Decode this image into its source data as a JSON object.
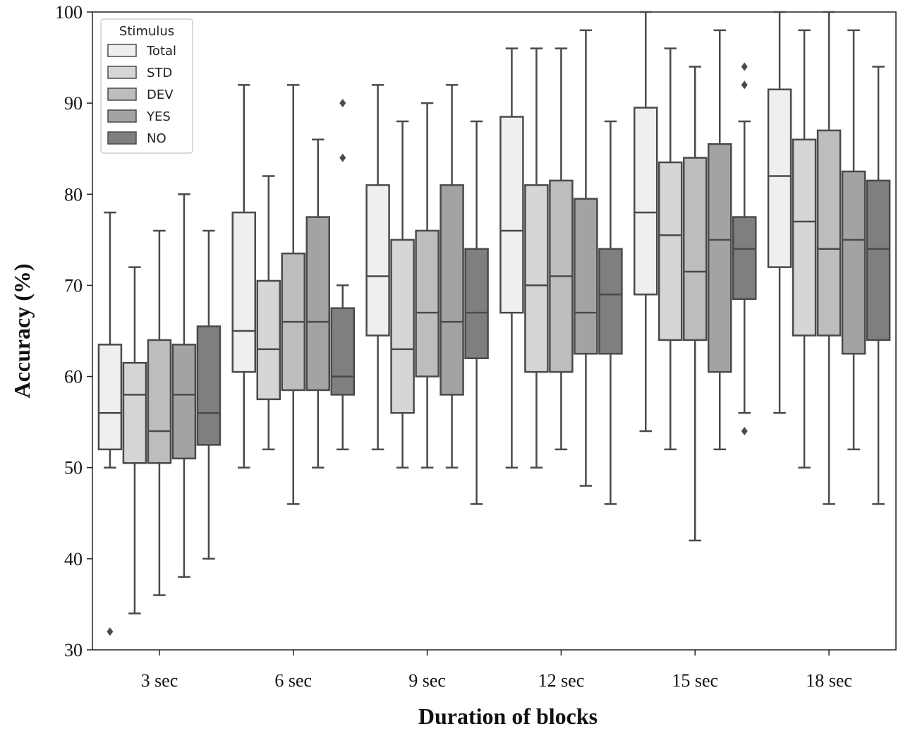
{
  "chart_data": {
    "type": "box",
    "xlabel": "Duration of blocks",
    "ylabel": "Accuracy (%)",
    "ylim": [
      30,
      100
    ],
    "yticks": [
      30,
      40,
      50,
      60,
      70,
      80,
      90,
      100
    ],
    "categories": [
      "3 sec",
      "6 sec",
      "9 sec",
      "12 sec",
      "15 sec",
      "18 sec"
    ],
    "legend": {
      "title": "Stimulus",
      "position": "top-left"
    },
    "series": [
      {
        "name": "Total",
        "color": "#efefef",
        "boxes": [
          {
            "whislo": 50,
            "q1": 52,
            "med": 56,
            "q3": 63.5,
            "whishi": 78,
            "fliers": [
              32
            ]
          },
          {
            "whislo": 50,
            "q1": 60.5,
            "med": 65,
            "q3": 78,
            "whishi": 92,
            "fliers": []
          },
          {
            "whislo": 52,
            "q1": 64.5,
            "med": 71,
            "q3": 81,
            "whishi": 92,
            "fliers": []
          },
          {
            "whislo": 50,
            "q1": 67,
            "med": 76,
            "q3": 88.5,
            "whishi": 96,
            "fliers": []
          },
          {
            "whislo": 54,
            "q1": 69,
            "med": 78,
            "q3": 89.5,
            "whishi": 100,
            "fliers": []
          },
          {
            "whislo": 56,
            "q1": 72,
            "med": 82,
            "q3": 91.5,
            "whishi": 100,
            "fliers": []
          }
        ]
      },
      {
        "name": "STD",
        "color": "#d6d6d6",
        "boxes": [
          {
            "whislo": 34,
            "q1": 50.5,
            "med": 58,
            "q3": 61.5,
            "whishi": 72,
            "fliers": []
          },
          {
            "whislo": 52,
            "q1": 57.5,
            "med": 63,
            "q3": 70.5,
            "whishi": 82,
            "fliers": []
          },
          {
            "whislo": 50,
            "q1": 56,
            "med": 63,
            "q3": 75,
            "whishi": 88,
            "fliers": []
          },
          {
            "whislo": 50,
            "q1": 60.5,
            "med": 70,
            "q3": 81,
            "whishi": 96,
            "fliers": []
          },
          {
            "whislo": 52,
            "q1": 64,
            "med": 75.5,
            "q3": 83.5,
            "whishi": 96,
            "fliers": []
          },
          {
            "whislo": 50,
            "q1": 64.5,
            "med": 77,
            "q3": 86,
            "whishi": 98,
            "fliers": []
          }
        ]
      },
      {
        "name": "DEV",
        "color": "#bdbdbd",
        "boxes": [
          {
            "whislo": 36,
            "q1": 50.5,
            "med": 54,
            "q3": 64,
            "whishi": 76,
            "fliers": []
          },
          {
            "whislo": 46,
            "q1": 58.5,
            "med": 66,
            "q3": 73.5,
            "whishi": 92,
            "fliers": []
          },
          {
            "whislo": 50,
            "q1": 60,
            "med": 67,
            "q3": 76,
            "whishi": 90,
            "fliers": []
          },
          {
            "whislo": 52,
            "q1": 60.5,
            "med": 71,
            "q3": 81.5,
            "whishi": 96,
            "fliers": []
          },
          {
            "whislo": 42,
            "q1": 64,
            "med": 71.5,
            "q3": 84,
            "whishi": 94,
            "fliers": []
          },
          {
            "whislo": 46,
            "q1": 64.5,
            "med": 74,
            "q3": 87,
            "whishi": 100,
            "fliers": []
          }
        ]
      },
      {
        "name": "YES",
        "color": "#a3a3a3",
        "boxes": [
          {
            "whislo": 38,
            "q1": 51,
            "med": 58,
            "q3": 63.5,
            "whishi": 80,
            "fliers": []
          },
          {
            "whislo": 50,
            "q1": 58.5,
            "med": 66,
            "q3": 77.5,
            "whishi": 86,
            "fliers": []
          },
          {
            "whislo": 50,
            "q1": 58,
            "med": 66,
            "q3": 81,
            "whishi": 92,
            "fliers": []
          },
          {
            "whislo": 48,
            "q1": 62.5,
            "med": 67,
            "q3": 79.5,
            "whishi": 98,
            "fliers": []
          },
          {
            "whislo": 52,
            "q1": 60.5,
            "med": 75,
            "q3": 85.5,
            "whishi": 98,
            "fliers": []
          },
          {
            "whislo": 52,
            "q1": 62.5,
            "med": 75,
            "q3": 82.5,
            "whishi": 98,
            "fliers": []
          }
        ]
      },
      {
        "name": "NO",
        "color": "#7f7f7f",
        "boxes": [
          {
            "whislo": 40,
            "q1": 52.5,
            "med": 56,
            "q3": 65.5,
            "whishi": 76,
            "fliers": []
          },
          {
            "whislo": 52,
            "q1": 58,
            "med": 60,
            "q3": 67.5,
            "whishi": 70,
            "fliers": [
              84,
              90
            ]
          },
          {
            "whislo": 46,
            "q1": 62,
            "med": 67,
            "q3": 74,
            "whishi": 88,
            "fliers": []
          },
          {
            "whislo": 46,
            "q1": 62.5,
            "med": 69,
            "q3": 74,
            "whishi": 88,
            "fliers": []
          },
          {
            "whislo": 56,
            "q1": 68.5,
            "med": 74,
            "q3": 77.5,
            "whishi": 88,
            "fliers": [
              54,
              92,
              94
            ]
          },
          {
            "whislo": 46,
            "q1": 64,
            "med": 74,
            "q3": 81.5,
            "whishi": 94,
            "fliers": []
          }
        ]
      }
    ],
    "line_color": "#4a4a4a",
    "grid": false
  }
}
